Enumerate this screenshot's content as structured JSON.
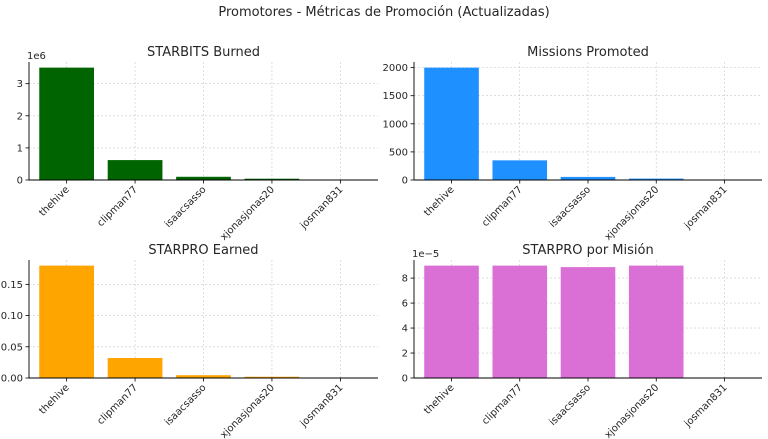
{
  "suptitle": "Promotores - Métricas de Promoción (Actualizadas)",
  "chart_data": [
    {
      "type": "bar",
      "title": "STARBITS Burned",
      "categories": [
        "thehive",
        "clipman77",
        "isaacsasso",
        "xjonasjonas20",
        "josman831"
      ],
      "values": [
        3500000,
        620000,
        100000,
        40000,
        8000
      ],
      "ylim": [
        0,
        3675000
      ],
      "yticks": [
        0,
        1,
        2,
        3
      ],
      "tick_scale": 1000000,
      "offset_label": "1e6",
      "color": "#006400",
      "grid": true
    },
    {
      "type": "bar",
      "title": "Missions Promoted",
      "categories": [
        "thehive",
        "clipman77",
        "isaacsasso",
        "xjonasjonas20",
        "josman831"
      ],
      "values": [
        2000,
        350,
        55,
        25,
        3
      ],
      "ylim": [
        0,
        2100
      ],
      "yticks": [
        0,
        500,
        1000,
        1500,
        2000
      ],
      "tick_scale": 1,
      "offset_label": "",
      "color": "#1E90FF",
      "grid": true
    },
    {
      "type": "bar",
      "title": "STARPRO Earned",
      "categories": [
        "thehive",
        "clipman77",
        "isaacsasso",
        "xjonasjonas20",
        "josman831"
      ],
      "values": [
        0.18,
        0.032,
        0.0045,
        0.002,
        0.0003
      ],
      "ylim": [
        0,
        0.189
      ],
      "yticks": [
        "0.00",
        "0.05",
        "0.10",
        "0.15"
      ],
      "tick_scale": 1,
      "offset_label": "",
      "color": "#FFA500",
      "grid": true
    },
    {
      "type": "bar",
      "title": "STARPRO por Misión",
      "categories": [
        "thehive",
        "clipman77",
        "isaacsasso",
        "xjonasjonas20",
        "josman831"
      ],
      "values": [
        9e-05,
        9e-05,
        8.88e-05,
        9e-05,
        0
      ],
      "ylim": [
        0,
        9.45e-05
      ],
      "yticks": [
        0,
        2,
        4,
        6,
        8
      ],
      "tick_scale": 1e-05,
      "offset_label": "1e−5",
      "color": "#DA70D6",
      "grid": true
    }
  ]
}
